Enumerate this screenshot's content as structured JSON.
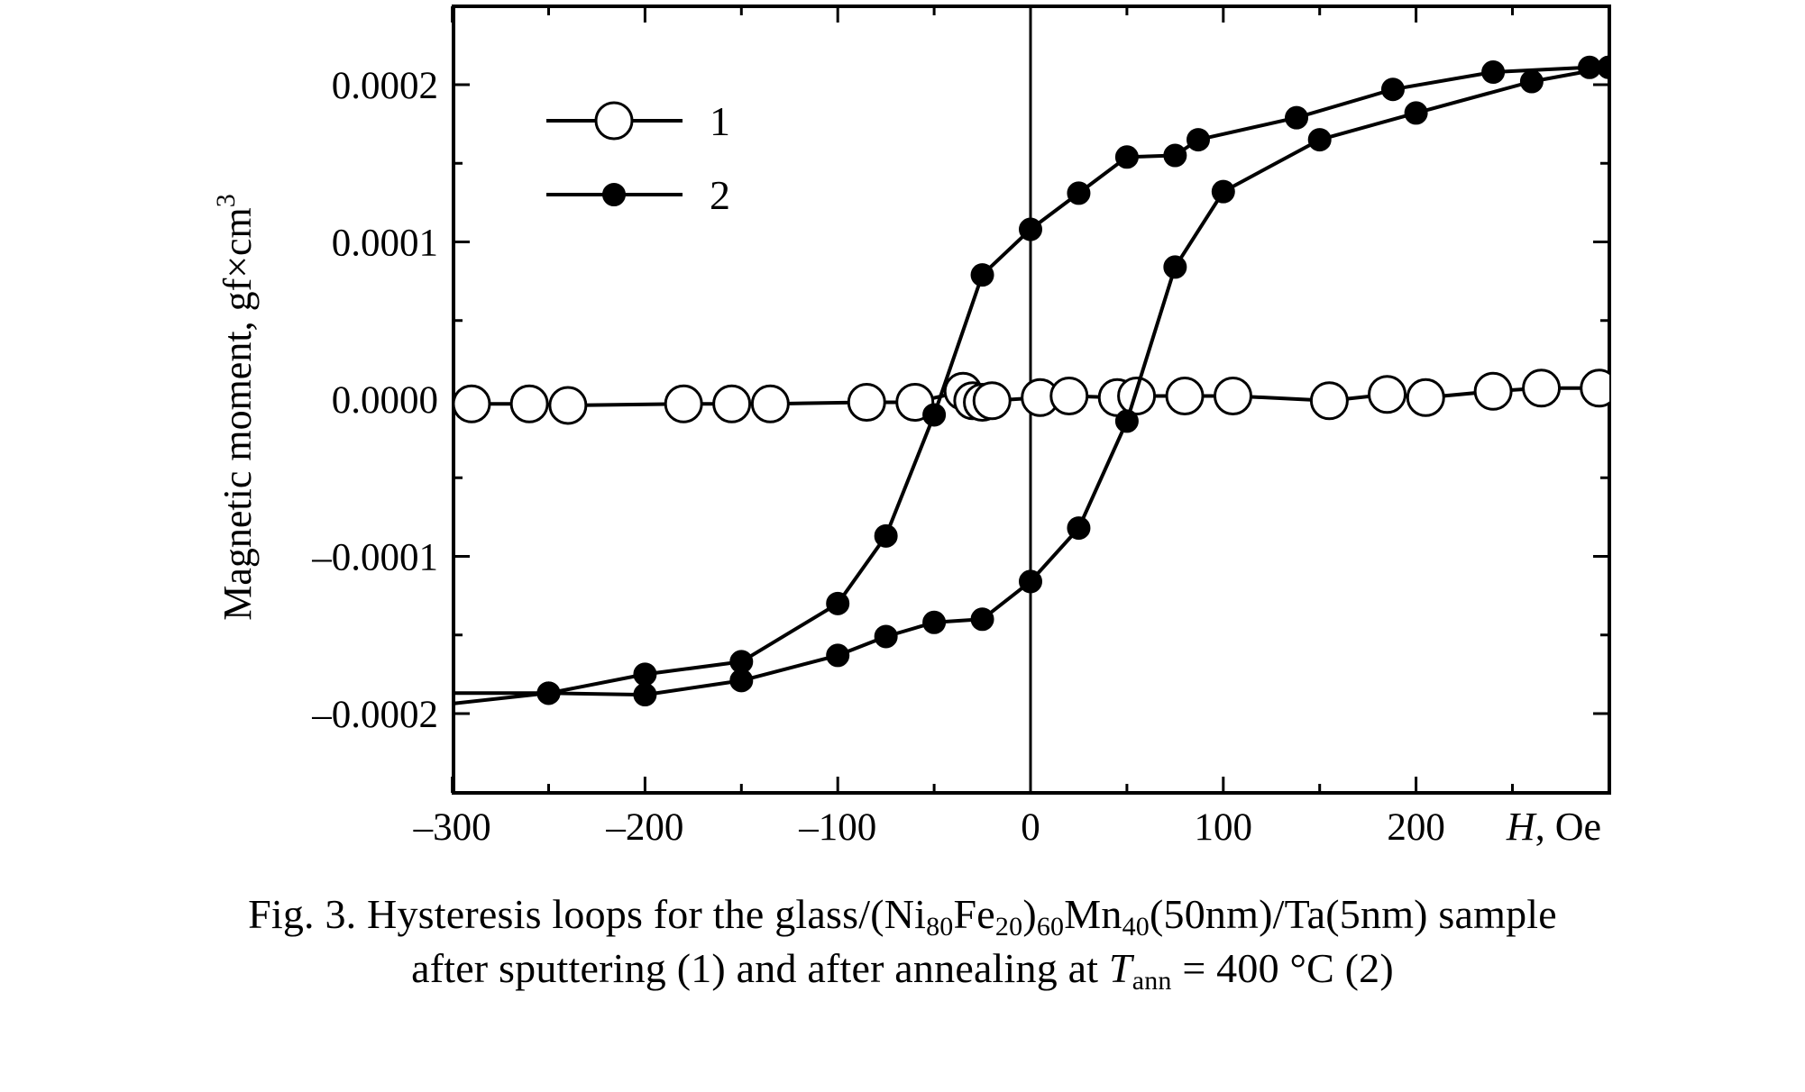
{
  "chart_data": {
    "type": "scatter",
    "title": "",
    "xlabel": "H, Oe",
    "xlabel_var": "H",
    "xlabel_unit": ", Oe",
    "ylabel": "Magnetic moment, gf×cm",
    "ylabel_sup": "3",
    "xlim": [
      -325,
      300
    ],
    "ylim": [
      -0.00025,
      0.00025
    ],
    "x_ticks": [
      -300,
      -200,
      -100,
      0,
      100,
      200
    ],
    "x_tick_labels": [
      "–300",
      "–200",
      "–100",
      "0",
      "100",
      "200"
    ],
    "y_ticks": [
      0.0002,
      0.0001,
      0.0,
      -0.0001,
      -0.0002
    ],
    "y_tick_labels": [
      "0.0002",
      "0.0001",
      "0.0000",
      "–0.0001",
      "–0.0002"
    ],
    "grid": false,
    "legend_position": "top-left",
    "series": [
      {
        "name": "1",
        "marker": "open-circle",
        "x": [
          -320,
          -290,
          -260,
          -240,
          -180,
          -155,
          -135,
          -85,
          -60,
          -35,
          -30,
          -25,
          -20,
          5,
          20,
          45,
          55,
          80,
          105,
          155,
          185,
          205,
          240,
          265,
          295
        ],
        "y": [
          -4e-06,
          -3e-06,
          -3e-06,
          -4e-06,
          -3e-06,
          -3e-06,
          -3e-06,
          -2e-06,
          -2e-06,
          5e-06,
          -1e-06,
          -2e-06,
          -1e-06,
          1e-06,
          2e-06,
          1e-06,
          2e-06,
          2e-06,
          2e-06,
          -1e-06,
          3e-06,
          1e-06,
          5e-06,
          7e-06,
          7e-06
        ]
      },
      {
        "name": "2",
        "marker": "filled-circle",
        "x": [
          -325,
          -250,
          -200,
          -150,
          -100,
          -75,
          -50,
          -25,
          0,
          25,
          50,
          75,
          87,
          138,
          188,
          240,
          290,
          300,
          300,
          260,
          200,
          150,
          100,
          75,
          50,
          25,
          0,
          -25,
          -50,
          -75,
          -100,
          -150,
          -200,
          -250,
          -325
        ],
        "y": [
          -0.000197,
          -0.000187,
          -0.000175,
          -0.000167,
          -0.00013,
          -8.7e-05,
          -1e-05,
          7.9e-05,
          0.000108,
          0.000131,
          0.000154,
          0.000155,
          0.000165,
          0.000179,
          0.000197,
          0.000208,
          0.000211,
          0.000211,
          0.000211,
          0.000202,
          0.000182,
          0.000165,
          0.000132,
          8.4e-05,
          -1.4e-05,
          -8.2e-05,
          -0.000116,
          -0.00014,
          -0.000142,
          -0.000151,
          -0.000163,
          -0.000179,
          -0.000188,
          -0.000187,
          -0.000187
        ]
      }
    ]
  },
  "caption": {
    "line1_prefix": "Fig. 3. Hysteresis loops for the glass/(Ni",
    "ni_sub": "80",
    "fe_text": "Fe",
    "fe_sub": "20",
    "paren_close": ")",
    "group_sub": "60",
    "mn_text": "Mn",
    "mn_sub": "40",
    "line1_suffix": "(50nm)/Ta(5nm) sample",
    "line2_prefix": "after sputtering (1) and after annealing at ",
    "t_var": "T",
    "t_sub": "ann",
    "line2_suffix": " = 400 °C (2)"
  }
}
